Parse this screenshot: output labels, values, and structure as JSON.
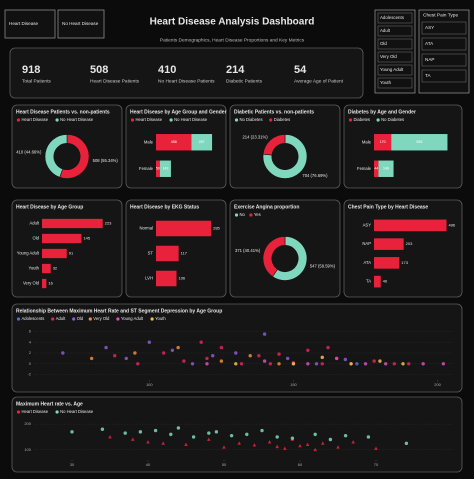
{
  "header": {
    "title": "Heart Disease Analysis Dashboard",
    "subtitle": "Patients Demographics, Heart Disease Proportions and Key Metrics"
  },
  "filters": {
    "heart_disease": [
      "Heart Disease",
      "No Heart Disease"
    ],
    "age_group": [
      "Adolescents",
      "Adult",
      "Old",
      "Very Old",
      "Young Adult",
      "Youth"
    ],
    "chest_pain": {
      "title": "Chest Pain Type",
      "options": [
        "ASY",
        "ATA",
        "NAP",
        "TA"
      ]
    }
  },
  "kpis": [
    {
      "value": 918,
      "label": "Total Patients"
    },
    {
      "value": 508,
      "label": "Heart Disease Patients"
    },
    {
      "value": 410,
      "label": "No Heart Disease Patients"
    },
    {
      "value": 214,
      "label": "Diabetic Patients"
    },
    {
      "value": 54,
      "label": "Average Age of Patient"
    }
  ],
  "chart_data": [
    {
      "type": "pie",
      "title": "Heart Disease Patients vs. non-patients",
      "categories": [
        "Heart Disease",
        "No Heart Disease"
      ],
      "colors": [
        "#e8223a",
        "#7fd8be"
      ],
      "values": [
        508,
        410
      ],
      "value_labels": [
        "508 (55.34%)",
        "410 (44.66%)"
      ]
    },
    {
      "type": "bar",
      "orientation": "horizontal",
      "stacked": true,
      "title": "Heart Disease by Age Group and Gender",
      "categories": [
        "Male",
        "Female"
      ],
      "xlim": [
        0,
        750
      ],
      "series": [
        {
          "name": "Heart Disease",
          "color": "#e8223a",
          "values": [
            458,
            50
          ]
        },
        {
          "name": "No Heart Disease",
          "color": "#7fd8be",
          "values": [
            267,
            143
          ]
        }
      ]
    },
    {
      "type": "pie",
      "title": "Diabetic Patients vs. non-patients",
      "categories": [
        "No Diabetes",
        "Diabetes"
      ],
      "colors": [
        "#7fd8be",
        "#e8223a"
      ],
      "values": [
        704,
        214
      ],
      "value_labels": [
        "704 (76.69%)",
        "214 (23.31%)"
      ]
    },
    {
      "type": "bar",
      "orientation": "horizontal",
      "stacked": true,
      "title": "Diabetes by Age and Gender",
      "categories": [
        "Male",
        "Female"
      ],
      "xlim": [
        0,
        750
      ],
      "series": [
        {
          "name": "Diabetes",
          "color": "#e8223a",
          "values": [
            170,
            44
          ]
        },
        {
          "name": "No Diabetes",
          "color": "#7fd8be",
          "values": [
            555,
            149
          ]
        }
      ]
    },
    {
      "type": "bar",
      "orientation": "horizontal",
      "stacked": false,
      "title": "Heart Disease by Age Group",
      "categories": [
        "Adult",
        "Old",
        "Young Adult",
        "Youth",
        "Very Old"
      ],
      "values": [
        223,
        145,
        91,
        32,
        16
      ],
      "color": "#e8223a",
      "xlim": [
        0,
        250
      ]
    },
    {
      "type": "bar",
      "orientation": "horizontal",
      "stacked": false,
      "title": "Heart Disease by EKG Status",
      "categories": [
        "Normal",
        "ST",
        "LVH"
      ],
      "values": [
        285,
        117,
        106
      ],
      "color": "#e8223a",
      "xlim": [
        0,
        300
      ]
    },
    {
      "type": "pie",
      "title": "Exercise Angina proportion",
      "categories": [
        "No",
        "Yes"
      ],
      "colors": [
        "#7fd8be",
        "#e8223a"
      ],
      "values": [
        547,
        371
      ],
      "value_labels": [
        "547 (59.59%)",
        "371 (40.41%)"
      ]
    },
    {
      "type": "bar",
      "orientation": "horizontal",
      "stacked": false,
      "title": "Chest Pain Type by Heart Disease",
      "categories": [
        "ASY",
        "NAP",
        "ATA",
        "TA"
      ],
      "values": [
        496,
        203,
        173,
        46
      ],
      "color": "#e8223a",
      "xlim": [
        0,
        520
      ]
    },
    {
      "type": "scatter",
      "title": "Relationship Between Maximum Heart Rate and ST Segment Depression by Age Group",
      "xlim": [
        60,
        205
      ],
      "xticks": [
        100,
        150,
        200
      ],
      "ylim": [
        -3,
        7
      ],
      "yticks": [
        -2,
        0,
        2,
        4,
        6
      ],
      "grid": true,
      "markers": [
        "circle",
        "circle",
        "circle",
        "circle",
        "circle",
        "circle"
      ],
      "series": [
        {
          "name": "Adolescents",
          "color": "#4a6ee0",
          "x": [
            150,
            172
          ],
          "values": [
            0,
            0
          ]
        },
        {
          "name": "Adult",
          "color": "#e0245e",
          "x": [
            88,
            96,
            105,
            112,
            120,
            125,
            132,
            138,
            142,
            150,
            155,
            160,
            165,
            170,
            178,
            185,
            190,
            118,
            145,
            162
          ],
          "values": [
            1.5,
            0,
            2,
            0.5,
            1,
            3,
            0,
            1.5,
            0,
            0.2,
            2.5,
            0,
            1,
            0,
            0.5,
            0,
            0,
            4,
            1.8,
            3
          ]
        },
        {
          "name": "Old",
          "color": "#8e5bd6",
          "x": [
            70,
            85,
            92,
            100,
            108,
            115,
            122,
            130,
            140,
            148,
            158,
            168
          ],
          "values": [
            2,
            3,
            1,
            4,
            2.5,
            0,
            1.5,
            2,
            5.5,
            1,
            0,
            0.8
          ]
        },
        {
          "name": "Very Old",
          "color": "#ef8a3a",
          "x": [
            80,
            95,
            110,
            125,
            135,
            145
          ],
          "values": [
            1,
            2,
            3,
            0.5,
            1.5,
            0
          ]
        },
        {
          "name": "Young Adult",
          "color": "#d94fc0",
          "x": [
            120,
            140,
            155,
            165,
            175,
            182,
            195,
            202
          ],
          "values": [
            0,
            0.5,
            0,
            1,
            0,
            0,
            0,
            0
          ]
        },
        {
          "name": "Youth",
          "color": "#f5c04a",
          "x": [
            130,
            150,
            160,
            170,
            180,
            188
          ],
          "values": [
            0,
            0,
            1.2,
            0,
            0.5,
            0
          ]
        }
      ]
    },
    {
      "type": "scatter",
      "title": "Maximum Heart rate vs. Age",
      "xlim": [
        25,
        80
      ],
      "xticks": [
        30,
        40,
        50,
        60,
        70
      ],
      "ylim": [
        60,
        220
      ],
      "yticks": [
        100,
        200
      ],
      "grid": true,
      "markers": [
        "triangle",
        "circle"
      ],
      "series": [
        {
          "name": "Heart Disease",
          "color": "#e8223a",
          "x": [
            35,
            38,
            40,
            42,
            45,
            48,
            50,
            52,
            54,
            56,
            57,
            58,
            59,
            60,
            61,
            62,
            63,
            65,
            67,
            70
          ],
          "values": [
            150,
            140,
            130,
            125,
            120,
            140,
            110,
            125,
            118,
            130,
            112,
            105,
            140,
            115,
            120,
            100,
            125,
            110,
            130,
            105
          ]
        },
        {
          "name": "No Heart Disease",
          "color": "#7fd8be",
          "x": [
            30,
            34,
            37,
            39,
            41,
            43,
            44,
            46,
            48,
            49,
            51,
            53,
            55,
            57,
            59,
            62,
            64,
            66,
            69,
            74
          ],
          "values": [
            170,
            180,
            165,
            170,
            175,
            160,
            185,
            150,
            165,
            170,
            155,
            160,
            175,
            150,
            145,
            160,
            140,
            155,
            150,
            125
          ]
        }
      ]
    }
  ]
}
